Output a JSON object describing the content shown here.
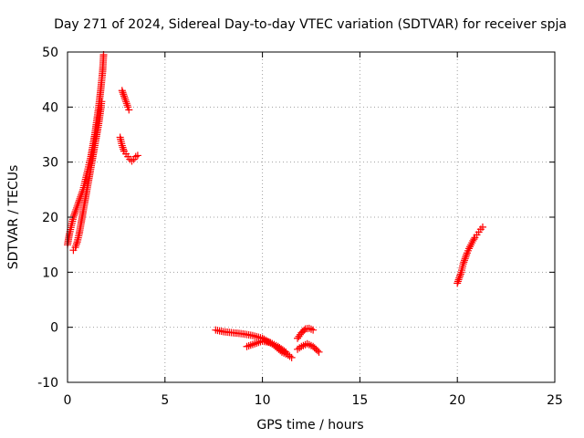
{
  "chart_data": {
    "type": "scatter",
    "title": "Day 271 of 2024, Sidereal Day-to-day VTEC variation (SDTVAR) for receiver spja",
    "xlabel": "GPS time / hours",
    "ylabel": "SDTVAR / TECUs",
    "xlim": [
      0,
      25
    ],
    "ylim": [
      -10,
      50
    ],
    "xticks": [
      0,
      5,
      10,
      15,
      20,
      25
    ],
    "yticks": [
      -10,
      0,
      10,
      20,
      30,
      40,
      50
    ],
    "grid": true,
    "marker": "+",
    "color": "#ff0000",
    "series": [
      {
        "name": "SDTVAR",
        "segments": [
          [
            [
              0.0,
              15.0
            ],
            [
              0.1,
              17.0
            ],
            [
              0.2,
              18.5
            ],
            [
              0.3,
              20.0
            ],
            [
              0.4,
              21.0
            ],
            [
              0.5,
              22.0
            ],
            [
              0.6,
              23.0
            ],
            [
              0.7,
              24.0
            ],
            [
              0.8,
              25.0
            ],
            [
              0.9,
              26.5
            ],
            [
              1.0,
              28.0
            ],
            [
              1.1,
              29.5
            ],
            [
              1.2,
              31.0
            ],
            [
              1.3,
              33.0
            ],
            [
              1.4,
              35.0
            ],
            [
              1.5,
              37.5
            ],
            [
              1.6,
              40.0
            ],
            [
              1.7,
              43.0
            ],
            [
              1.8,
              46.5
            ],
            [
              1.85,
              49.5
            ]
          ],
          [
            [
              0.3,
              14.0
            ],
            [
              0.4,
              14.5
            ],
            [
              0.5,
              15.5
            ],
            [
              0.6,
              17.0
            ],
            [
              0.7,
              19.0
            ],
            [
              0.8,
              21.0
            ],
            [
              0.9,
              23.0
            ],
            [
              1.0,
              25.0
            ],
            [
              1.1,
              27.0
            ],
            [
              1.2,
              29.0
            ],
            [
              1.3,
              31.0
            ],
            [
              1.4,
              33.0
            ],
            [
              1.5,
              35.0
            ],
            [
              1.6,
              37.0
            ],
            [
              1.7,
              39.5
            ],
            [
              1.75,
              41.0
            ]
          ],
          [
            [
              2.7,
              34.5
            ],
            [
              2.8,
              33.0
            ],
            [
              2.9,
              32.0
            ],
            [
              3.0,
              31.5
            ],
            [
              3.1,
              31.0
            ],
            [
              3.2,
              30.5
            ],
            [
              3.3,
              30.2
            ],
            [
              3.4,
              30.5
            ],
            [
              3.5,
              31.0
            ],
            [
              3.6,
              31.2
            ]
          ],
          [
            [
              2.8,
              43.0
            ],
            [
              2.9,
              42.0
            ],
            [
              3.0,
              41.0
            ],
            [
              3.1,
              40.0
            ],
            [
              3.15,
              39.5
            ]
          ],
          [
            [
              7.6,
              -0.5
            ],
            [
              8.0,
              -0.8
            ],
            [
              8.5,
              -1.0
            ],
            [
              9.0,
              -1.2
            ],
            [
              9.5,
              -1.5
            ],
            [
              10.0,
              -2.0
            ],
            [
              10.5,
              -3.0
            ],
            [
              11.0,
              -4.5
            ],
            [
              11.3,
              -5.0
            ],
            [
              11.5,
              -5.5
            ]
          ],
          [
            [
              9.2,
              -3.5
            ],
            [
              9.6,
              -3.0
            ],
            [
              10.0,
              -2.5
            ],
            [
              10.4,
              -2.8
            ],
            [
              10.8,
              -3.5
            ],
            [
              11.2,
              -4.5
            ]
          ],
          [
            [
              11.8,
              -4.0
            ],
            [
              12.0,
              -3.5
            ],
            [
              12.3,
              -3.0
            ],
            [
              12.6,
              -3.5
            ],
            [
              12.9,
              -4.5
            ]
          ],
          [
            [
              11.8,
              -2.0
            ],
            [
              12.0,
              -1.0
            ],
            [
              12.2,
              -0.3
            ],
            [
              12.4,
              -0.2
            ],
            [
              12.6,
              -0.5
            ]
          ],
          [
            [
              20.0,
              8.0
            ],
            [
              20.1,
              9.0
            ],
            [
              20.2,
              10.0
            ],
            [
              20.3,
              11.5
            ],
            [
              20.4,
              12.5
            ],
            [
              20.5,
              13.5
            ],
            [
              20.6,
              14.3
            ],
            [
              20.7,
              15.0
            ],
            [
              20.8,
              15.7
            ],
            [
              20.9,
              16.3
            ],
            [
              21.0,
              16.8
            ],
            [
              21.1,
              17.3
            ],
            [
              21.2,
              17.8
            ],
            [
              21.3,
              18.2
            ]
          ]
        ]
      }
    ]
  }
}
